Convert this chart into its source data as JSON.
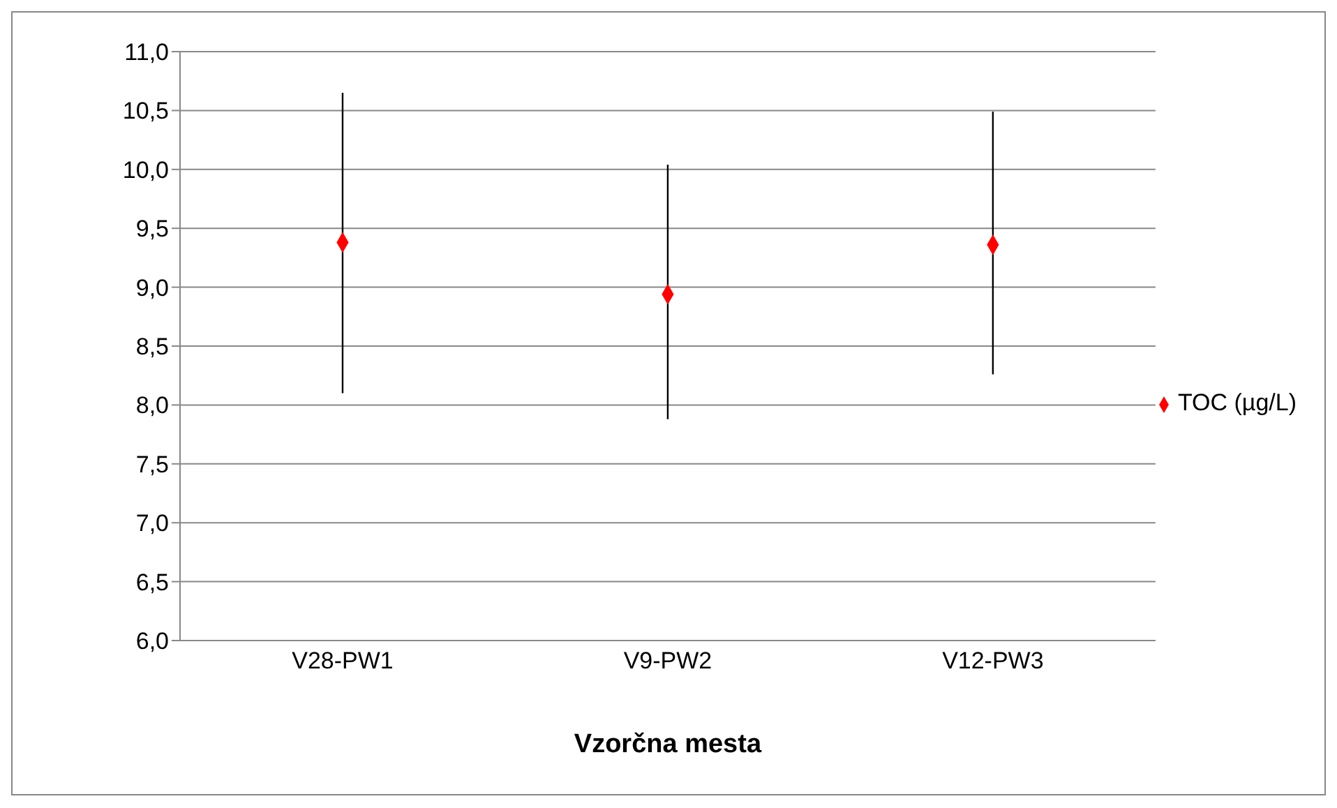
{
  "chart_data": {
    "type": "scatter",
    "xlabel": "Vzorčna mesta",
    "categories": [
      "V28-PW1",
      "V9-PW2",
      "V12-PW3"
    ],
    "series": [
      {
        "name": "TOC (µg/L)",
        "color": "#ff0000",
        "values": [
          9.38,
          8.94,
          9.36
        ],
        "errors": [
          [
            8.1,
            10.65
          ],
          [
            7.88,
            10.04
          ],
          [
            8.26,
            10.49
          ]
        ]
      }
    ],
    "ylim": [
      6,
      11
    ],
    "yticks": [
      {
        "value": 6,
        "label": "6,0"
      },
      {
        "value": 6.5,
        "label": "6,5"
      },
      {
        "value": 7,
        "label": "7,0"
      },
      {
        "value": 7.5,
        "label": "7,5"
      },
      {
        "value": 8,
        "label": "8,0"
      },
      {
        "value": 8.5,
        "label": "8,5"
      },
      {
        "value": 9,
        "label": "9,0"
      },
      {
        "value": 9.5,
        "label": "9,5"
      },
      {
        "value": 10,
        "label": "10,0"
      },
      {
        "value": 10.5,
        "label": "10,5"
      },
      {
        "value": 11,
        "label": "11,0"
      }
    ],
    "grid": "y",
    "legend": "right",
    "marker": "diamond"
  }
}
